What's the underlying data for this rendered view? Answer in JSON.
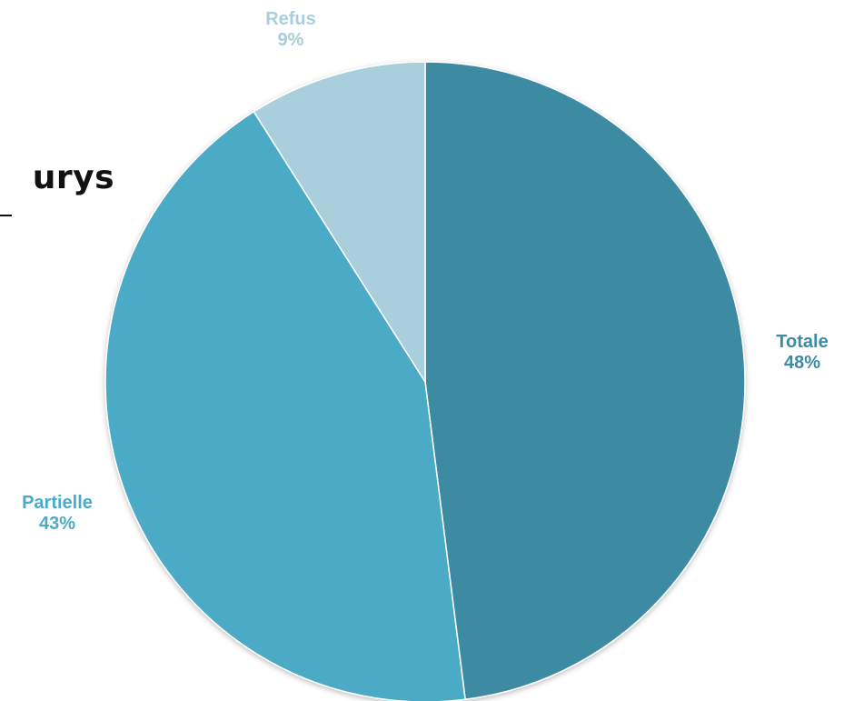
{
  "page": {
    "title_fragment": "urys"
  },
  "chart_data": {
    "type": "pie",
    "start_angle_deg": 0,
    "direction": "clockwise",
    "slices": [
      {
        "label": "Totale",
        "value": 48,
        "value_label": "48%",
        "color": "#3C8BA3",
        "label_color": "#3C8BA3"
      },
      {
        "label": "Partielle",
        "value": 43,
        "value_label": "43%",
        "color": "#4BABC6",
        "label_color": "#4BABC6"
      },
      {
        "label": "Refus",
        "value": 9,
        "value_label": "9%",
        "color": "#A9CEDC",
        "label_color": "#A9CEDC"
      }
    ],
    "legend": "none",
    "data_labels": "outside"
  }
}
